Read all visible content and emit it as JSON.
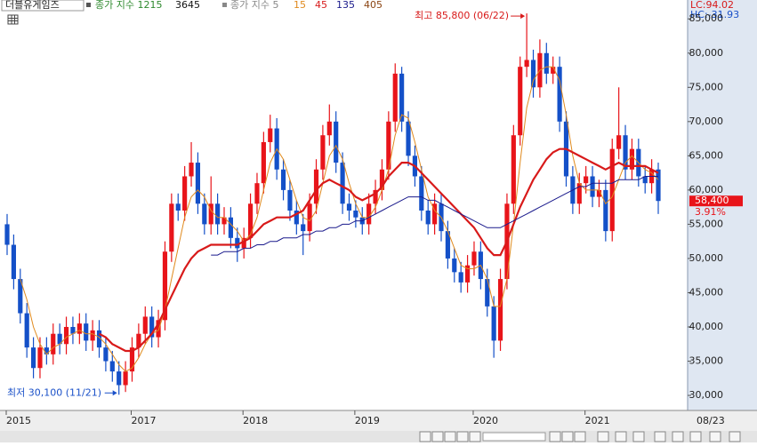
{
  "chart_data": {
    "type": "candlestick",
    "header": {
      "stock_name": "더블유게임즈",
      "price_label": "종가 지수 1215",
      "price_extra": "3645",
      "ma_label": "종가 지수 5",
      "ma_extra": {
        "name": "405",
        "color": "#8b4513"
      }
    },
    "right_info": {
      "lc": "LC:94.02",
      "hc": "HC:-31.93",
      "last_price_label": "58,400",
      "change_label": "3.91%"
    },
    "annotations": {
      "high": "최고 85,800 (06/22)",
      "low": "최저 30,100 (11/21)"
    },
    "cursor_date": "08/23",
    "categories": [
      "2015",
      null,
      null,
      null,
      null,
      null,
      null,
      null,
      null,
      null,
      null,
      null,
      null,
      null,
      null,
      null,
      null,
      null,
      null,
      "2017",
      null,
      null,
      null,
      null,
      null,
      null,
      null,
      null,
      null,
      null,
      null,
      null,
      null,
      null,
      null,
      null,
      "2018",
      null,
      null,
      null,
      null,
      null,
      null,
      null,
      null,
      null,
      null,
      null,
      null,
      null,
      null,
      null,
      null,
      "2019",
      null,
      null,
      null,
      null,
      null,
      null,
      null,
      null,
      null,
      null,
      null,
      null,
      null,
      null,
      null,
      null,
      null,
      "2020",
      null,
      null,
      null,
      null,
      null,
      null,
      null,
      null,
      null,
      null,
      null,
      null,
      null,
      null,
      null,
      null,
      "2021",
      null,
      null,
      null,
      null,
      null,
      null,
      null,
      null,
      null,
      null,
      null
    ],
    "open": [
      55000,
      52000,
      47000,
      42000,
      37000,
      34000,
      37000,
      36000,
      39000,
      37500,
      40000,
      39000,
      40500,
      38000,
      39500,
      37000,
      35000,
      33500,
      31500,
      33500,
      37000,
      39000,
      41500,
      38500,
      41000,
      51000,
      58000,
      57000,
      62000,
      64000,
      58000,
      55000,
      58000,
      55000,
      56000,
      53000,
      51500,
      53000,
      58000,
      61000,
      67000,
      69000,
      63000,
      60000,
      57000,
      55000,
      54000,
      58000,
      63000,
      68000,
      70000,
      64000,
      58000,
      57000,
      56000,
      55000,
      58000,
      60000,
      63000,
      70000,
      77000,
      70000,
      65000,
      62000,
      57000,
      55000,
      58000,
      54000,
      50000,
      48000,
      46500,
      49000,
      51000,
      47000,
      43000,
      38000,
      47000,
      58000,
      68000,
      78000,
      79000,
      75000,
      80000,
      77000,
      78000,
      70000,
      62000,
      58000,
      61000,
      62000,
      59000,
      60000,
      54000,
      66000,
      68000,
      63000,
      66000,
      62000,
      61000,
      63000
    ],
    "high": [
      56500,
      53500,
      48500,
      43500,
      38500,
      38500,
      38500,
      40500,
      40500,
      41500,
      41500,
      42000,
      42000,
      41000,
      41000,
      38500,
      36500,
      35000,
      35000,
      38500,
      40500,
      43000,
      43000,
      42500,
      52500,
      59500,
      59500,
      63500,
      67000,
      65500,
      59500,
      62000,
      59500,
      57500,
      57500,
      54500,
      54500,
      59500,
      62500,
      68500,
      71000,
      70500,
      64500,
      61500,
      58500,
      56500,
      59500,
      64500,
      69500,
      72500,
      71500,
      65500,
      59500,
      58500,
      57500,
      59500,
      61500,
      64500,
      71500,
      78500,
      78000,
      71500,
      66500,
      63500,
      58500,
      59500,
      59500,
      55500,
      51500,
      49500,
      50500,
      52500,
      52500,
      48500,
      44500,
      48500,
      59500,
      69500,
      79500,
      85800,
      80500,
      82000,
      81500,
      79500,
      79500,
      71500,
      63500,
      62500,
      63500,
      63500,
      61500,
      61500,
      67500,
      75000,
      69500,
      67500,
      67500,
      63500,
      64500,
      64000
    ],
    "low": [
      50500,
      45500,
      40500,
      35500,
      32500,
      32500,
      34500,
      34500,
      36000,
      36000,
      37500,
      37500,
      36500,
      36500,
      35500,
      33500,
      32000,
      30100,
      30500,
      32000,
      35500,
      37500,
      37000,
      37000,
      39500,
      49500,
      55500,
      55500,
      60500,
      56500,
      53500,
      53500,
      53500,
      53500,
      51500,
      49500,
      50000,
      51500,
      56500,
      59500,
      65500,
      61500,
      58500,
      55500,
      53500,
      50500,
      52500,
      56500,
      61500,
      66500,
      62500,
      56500,
      55500,
      54500,
      53500,
      53500,
      56500,
      58500,
      61500,
      68500,
      68500,
      63500,
      60500,
      55500,
      53500,
      53500,
      52500,
      48500,
      46500,
      45000,
      45000,
      47500,
      45500,
      41500,
      35500,
      36500,
      45500,
      56500,
      66500,
      76500,
      73500,
      73500,
      75500,
      75500,
      68500,
      60500,
      56500,
      56500,
      59500,
      57500,
      57500,
      52500,
      52500,
      64500,
      61500,
      61500,
      60500,
      59500,
      59500,
      56500
    ],
    "close": [
      52000,
      47000,
      42000,
      37000,
      34000,
      37000,
      36000,
      39000,
      37500,
      40000,
      39000,
      40500,
      38000,
      39500,
      37000,
      35000,
      33500,
      31500,
      33500,
      37000,
      39000,
      41500,
      38500,
      41000,
      51000,
      58000,
      57000,
      62000,
      64000,
      58000,
      55000,
      58000,
      55000,
      56000,
      53000,
      51500,
      53000,
      58000,
      61000,
      67000,
      69000,
      63000,
      60000,
      57000,
      55000,
      54000,
      58000,
      63000,
      68000,
      70000,
      64000,
      58000,
      57000,
      56000,
      55000,
      58000,
      60000,
      63000,
      70000,
      77000,
      70000,
      65000,
      62000,
      57000,
      55000,
      58000,
      54000,
      50000,
      48000,
      46500,
      49000,
      51000,
      47000,
      43000,
      38000,
      47000,
      58000,
      68000,
      78000,
      79000,
      75000,
      80000,
      77000,
      78000,
      70000,
      62000,
      58000,
      61000,
      62000,
      59000,
      60000,
      54000,
      66000,
      68000,
      63000,
      66000,
      62000,
      61000,
      63000,
      58400
    ],
    "up_color": "#e8141a",
    "down_color": "#1450c8",
    "series": [
      {
        "name": "15",
        "color": "#e08a1e",
        "width": 1,
        "values": [
          null,
          null,
          47000,
          44000,
          40000,
          37500,
          36000,
          37000,
          37500,
          38500,
          39000,
          39500,
          39000,
          39000,
          38500,
          37500,
          36000,
          34500,
          33500,
          34000,
          35500,
          37500,
          39000,
          39500,
          42500,
          47000,
          51500,
          56000,
          59000,
          60000,
          59000,
          57000,
          56000,
          56000,
          55000,
          54000,
          52500,
          53500,
          56000,
          60000,
          64000,
          66000,
          64500,
          61500,
          58500,
          56000,
          55500,
          57000,
          61000,
          65000,
          66500,
          64500,
          61000,
          58000,
          56000,
          56000,
          57500,
          60000,
          63000,
          68000,
          71000,
          70500,
          67000,
          63000,
          59000,
          57000,
          56000,
          54000,
          51500,
          49000,
          48500,
          48500,
          49000,
          47000,
          43000,
          43000,
          47000,
          55000,
          64000,
          72000,
          76000,
          77500,
          78000,
          78000,
          76000,
          71000,
          65000,
          61000,
          60000,
          60000,
          60000,
          58000,
          59000,
          61500,
          64000,
          65000,
          64000,
          63000,
          62500,
          61500
        ]
      },
      {
        "name": "45",
        "color": "#d81a1a",
        "width": 2.2,
        "values": [
          null,
          null,
          null,
          null,
          null,
          null,
          null,
          null,
          null,
          null,
          null,
          null,
          null,
          null,
          39000,
          38500,
          37500,
          37000,
          36500,
          36500,
          37000,
          38000,
          39000,
          40500,
          42500,
          44500,
          46500,
          48500,
          50000,
          51000,
          51500,
          52000,
          52000,
          52000,
          52000,
          52000,
          52500,
          53000,
          54000,
          55000,
          55500,
          56000,
          56000,
          56000,
          56500,
          57000,
          58500,
          60000,
          61000,
          61500,
          61000,
          60500,
          60000,
          59000,
          58500,
          59000,
          59500,
          60500,
          62000,
          63000,
          64000,
          64000,
          63500,
          62500,
          61500,
          60500,
          59500,
          58500,
          57500,
          56500,
          55500,
          54500,
          53000,
          51500,
          50500,
          50500,
          52500,
          55000,
          57500,
          59500,
          61500,
          63000,
          64500,
          65500,
          66000,
          66000,
          65500,
          65000,
          64500,
          64000,
          63500,
          63000,
          63500,
          64000,
          63500,
          63500,
          63500,
          63500,
          63000,
          62500
        ]
      },
      {
        "name": "135",
        "color": "#1a1a8c",
        "width": 1,
        "values": [
          null,
          null,
          null,
          null,
          null,
          null,
          null,
          null,
          null,
          null,
          null,
          null,
          null,
          null,
          null,
          null,
          null,
          null,
          null,
          null,
          null,
          null,
          null,
          null,
          null,
          null,
          null,
          null,
          null,
          null,
          null,
          50500,
          50500,
          51000,
          51000,
          51000,
          51500,
          51500,
          52000,
          52000,
          52500,
          52500,
          53000,
          53000,
          53000,
          53500,
          53500,
          54000,
          54000,
          54500,
          54500,
          55000,
          55000,
          55500,
          55500,
          56000,
          56500,
          57000,
          57500,
          58000,
          58500,
          59000,
          59000,
          59000,
          58500,
          58500,
          58000,
          57500,
          57000,
          56500,
          56000,
          55500,
          55000,
          54500,
          54500,
          54500,
          55000,
          55500,
          56000,
          56500,
          57000,
          57500,
          58000,
          58500,
          59000,
          59500,
          60000,
          60500,
          60500,
          61000,
          61000,
          61000,
          61000,
          61500,
          61500,
          61500,
          61500,
          62000,
          62000,
          62000
        ]
      }
    ],
    "ylim": [
      27800,
      86200
    ],
    "yticks": [
      {
        "value": 30000,
        "label": "30,000"
      },
      {
        "value": 35000,
        "label": "35,000"
      },
      {
        "value": 40000,
        "label": "40,000"
      },
      {
        "value": 45000,
        "label": "45,000"
      },
      {
        "value": 50000,
        "label": "50,000"
      },
      {
        "value": 55000,
        "label": "55,000"
      },
      {
        "value": 60000,
        "label": "60,000"
      },
      {
        "value": 65000,
        "label": "65,000"
      },
      {
        "value": 70000,
        "label": "70,000"
      },
      {
        "value": 75000,
        "label": "75,000"
      },
      {
        "value": 80000,
        "label": "80,000"
      },
      {
        "value": 85000,
        "label": "85,000"
      }
    ],
    "grid": false
  }
}
